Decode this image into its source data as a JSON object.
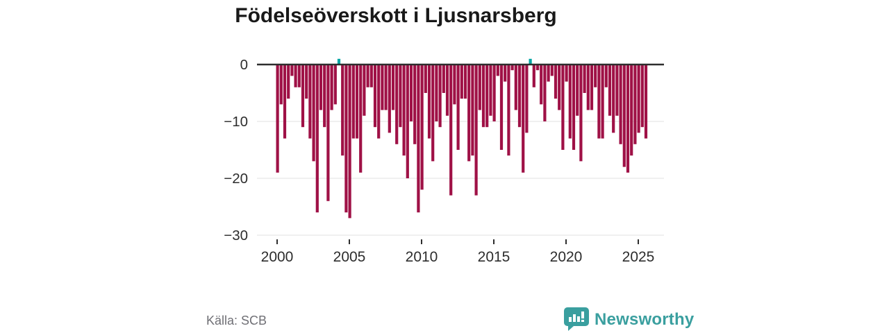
{
  "title": "Födelseöverskott i Ljusnarsberg",
  "source": "Källa: SCB",
  "brand": {
    "name": "Newsworthy",
    "color": "#3a9f9f",
    "icon": "speech-bubble-bar-chart-icon"
  },
  "chart_data": {
    "type": "bar",
    "title": "Födelseöverskott i Ljusnarsberg",
    "frequency": "quarterly",
    "start_year": 2000,
    "start_quarter": 1,
    "end_year": 2025,
    "end_quarter": 3,
    "values": [
      -19,
      -7,
      -13,
      -6,
      -2,
      -4,
      -4,
      -11,
      -6,
      -13,
      -17,
      -26,
      -8,
      -11,
      -24,
      -8,
      -7,
      1,
      -16,
      -26,
      -27,
      -13,
      -13,
      -19,
      -9,
      -4,
      -4,
      -11,
      -13,
      -8,
      -8,
      -12,
      -8,
      -14,
      -11,
      -16,
      -20,
      -10,
      -14,
      -26,
      -22,
      -5,
      -13,
      -17,
      -10,
      -11,
      -5,
      -9,
      -23,
      -7,
      -15,
      -6,
      -6,
      -17,
      -16,
      -23,
      -8,
      -11,
      -11,
      -9,
      -10,
      -2,
      -15,
      -3,
      -16,
      -1,
      -8,
      -11,
      -19,
      -12,
      1,
      -4,
      -1,
      -7,
      -10,
      -3,
      -2,
      -6,
      -8,
      -15,
      -3,
      -13,
      -15,
      -9,
      -17,
      -5,
      -8,
      -8,
      -4,
      -13,
      -13,
      -4,
      -9,
      -12,
      -9,
      -14,
      -18,
      -19,
      -16,
      -14,
      -12,
      -11,
      -13
    ],
    "negative_color": "#9f1146",
    "positive_color": "#00a5a3",
    "ylim": [
      -30,
      2
    ],
    "yticks": [
      0,
      -10,
      -20,
      -30
    ],
    "ytick_labels": [
      "0",
      "−10",
      "−20",
      "−30"
    ],
    "xticks": [
      2000,
      2005,
      2010,
      2015,
      2020,
      2025
    ],
    "xtick_labels": [
      "2000",
      "2005",
      "2010",
      "2015",
      "2020",
      "2025"
    ],
    "grid": "horizontal",
    "legend": "none"
  }
}
